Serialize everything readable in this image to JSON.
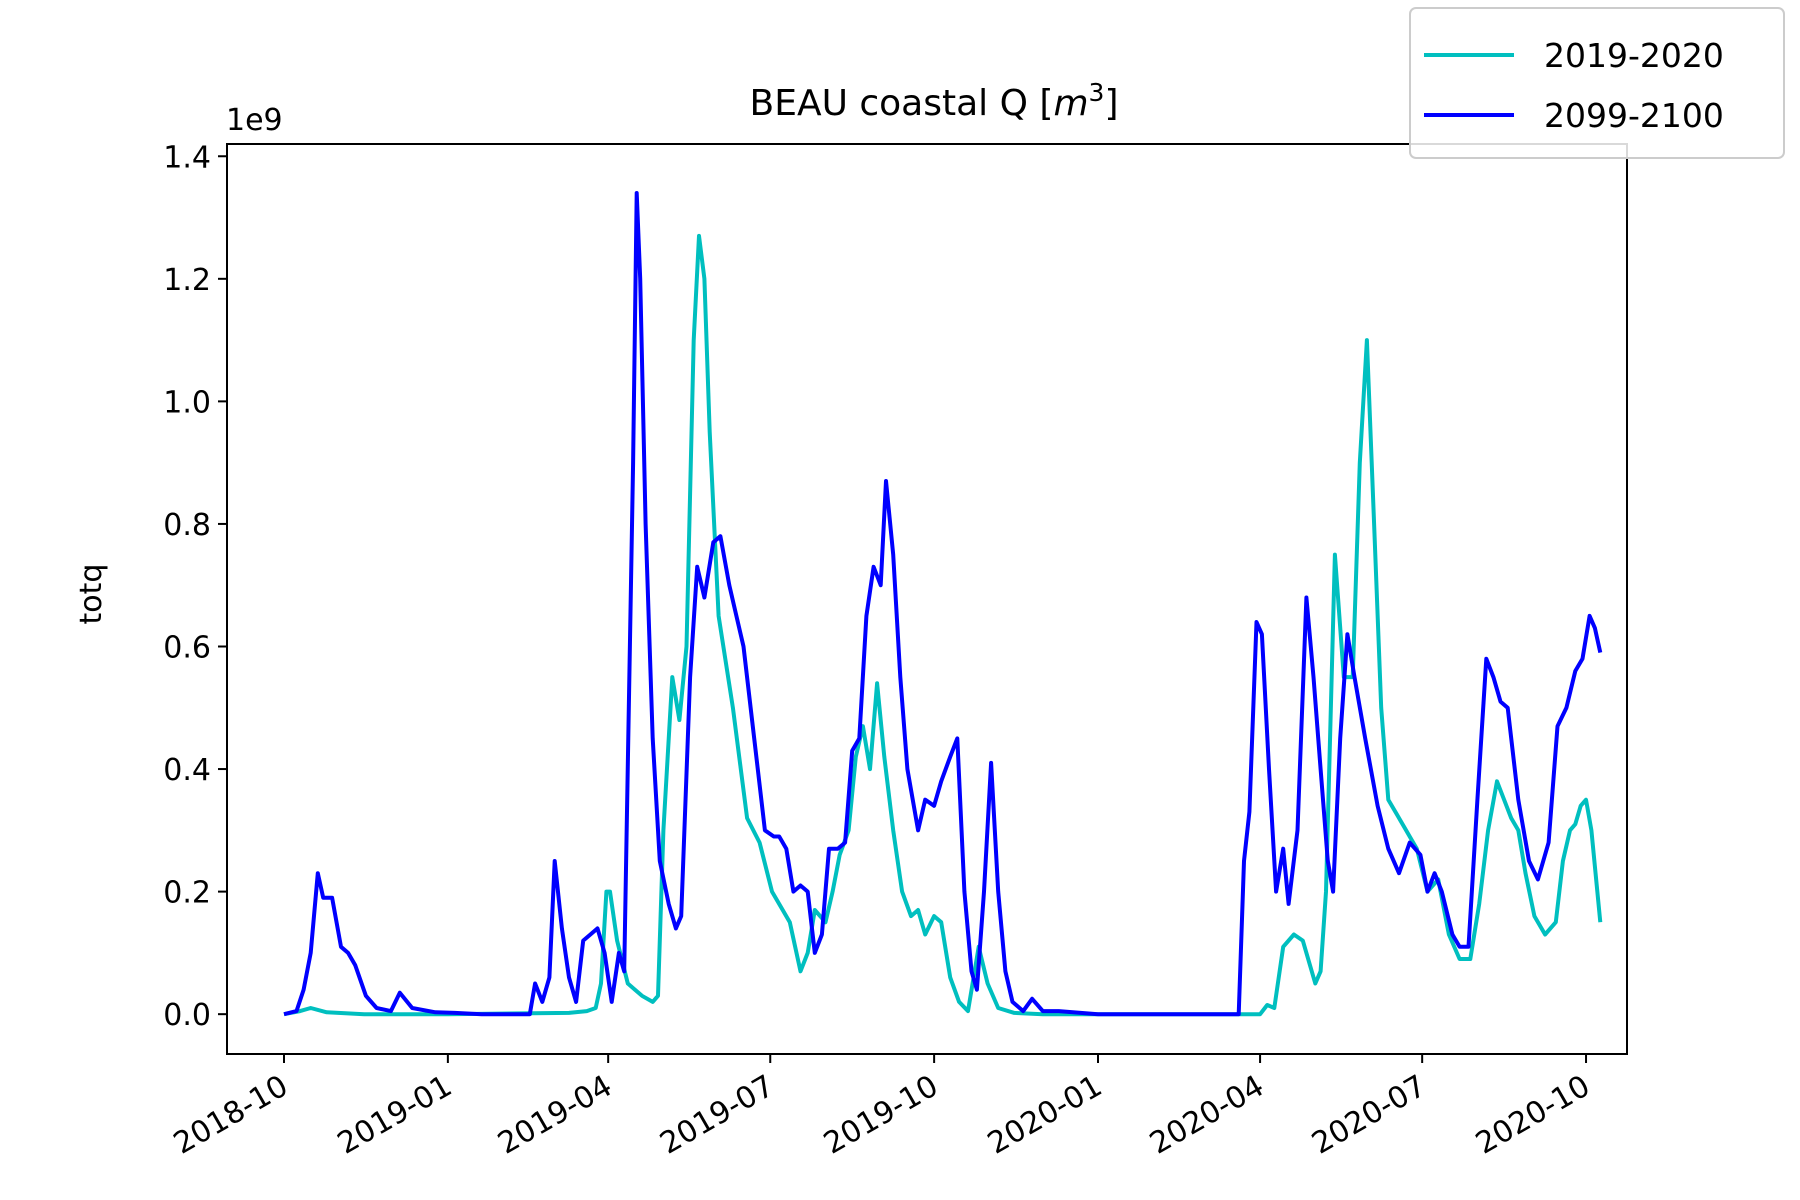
{
  "chart_data": {
    "type": "line",
    "title_main": "BEAU coastal Q [",
    "title_math": "m",
    "title_sup": "3",
    "title_end": "]",
    "ylabel": "totq",
    "y_offset_label": "1e9",
    "y_multiplier": 1000000000,
    "ylim": [
      -0.065,
      1.42
    ],
    "y_ticks": [
      0.0,
      0.2,
      0.4,
      0.6,
      0.8,
      1.0,
      1.2,
      1.4
    ],
    "y_tick_labels": [
      "0.0",
      "0.2",
      "0.4",
      "0.6",
      "0.8",
      "1.0",
      "1.2",
      "1.4"
    ],
    "xlim": [
      "2018-08-30",
      "2020-10-24"
    ],
    "x_ticks": [
      "2018-10-01",
      "2019-01-01",
      "2019-04-01",
      "2019-07-01",
      "2019-10-01",
      "2020-01-01",
      "2020-04-01",
      "2020-07-01",
      "2020-10-01"
    ],
    "x_tick_labels": [
      "2018-10",
      "2019-01",
      "2019-04",
      "2019-07",
      "2019-10",
      "2020-01",
      "2020-04",
      "2020-07",
      "2020-10"
    ],
    "grid": false,
    "legend_position": "top-right",
    "series": [
      {
        "name": "2019-2020",
        "color": "#00bfbf",
        "points": [
          [
            "2018-10-01",
            0.0
          ],
          [
            "2018-10-10",
            0.005
          ],
          [
            "2018-10-16",
            0.01
          ],
          [
            "2018-10-25",
            0.003
          ],
          [
            "2018-11-15",
            0.0
          ],
          [
            "2019-01-01",
            0.0
          ],
          [
            "2019-03-10",
            0.002
          ],
          [
            "2019-03-20",
            0.005
          ],
          [
            "2019-03-25",
            0.01
          ],
          [
            "2019-03-28",
            0.05
          ],
          [
            "2019-03-31",
            0.2
          ],
          [
            "2019-04-02",
            0.2
          ],
          [
            "2019-04-06",
            0.12
          ],
          [
            "2019-04-12",
            0.05
          ],
          [
            "2019-04-20",
            0.03
          ],
          [
            "2019-04-26",
            0.02
          ],
          [
            "2019-04-29",
            0.03
          ],
          [
            "2019-05-02",
            0.3
          ],
          [
            "2019-05-07",
            0.55
          ],
          [
            "2019-05-11",
            0.48
          ],
          [
            "2019-05-15",
            0.6
          ],
          [
            "2019-05-19",
            1.1
          ],
          [
            "2019-05-22",
            1.27
          ],
          [
            "2019-05-25",
            1.2
          ],
          [
            "2019-05-28",
            0.95
          ],
          [
            "2019-06-02",
            0.65
          ],
          [
            "2019-06-10",
            0.5
          ],
          [
            "2019-06-18",
            0.32
          ],
          [
            "2019-06-25",
            0.28
          ],
          [
            "2019-07-02",
            0.2
          ],
          [
            "2019-07-08",
            0.17
          ],
          [
            "2019-07-12",
            0.15
          ],
          [
            "2019-07-18",
            0.07
          ],
          [
            "2019-07-22",
            0.1
          ],
          [
            "2019-07-26",
            0.17
          ],
          [
            "2019-08-01",
            0.15
          ],
          [
            "2019-08-05",
            0.2
          ],
          [
            "2019-08-09",
            0.26
          ],
          [
            "2019-08-14",
            0.3
          ],
          [
            "2019-08-18",
            0.42
          ],
          [
            "2019-08-22",
            0.47
          ],
          [
            "2019-08-26",
            0.4
          ],
          [
            "2019-08-30",
            0.54
          ],
          [
            "2019-09-03",
            0.42
          ],
          [
            "2019-09-08",
            0.3
          ],
          [
            "2019-09-13",
            0.2
          ],
          [
            "2019-09-18",
            0.16
          ],
          [
            "2019-09-22",
            0.17
          ],
          [
            "2019-09-26",
            0.13
          ],
          [
            "2019-10-01",
            0.16
          ],
          [
            "2019-10-05",
            0.15
          ],
          [
            "2019-10-10",
            0.06
          ],
          [
            "2019-10-15",
            0.02
          ],
          [
            "2019-10-20",
            0.005
          ],
          [
            "2019-10-26",
            0.11
          ],
          [
            "2019-10-31",
            0.05
          ],
          [
            "2019-11-06",
            0.01
          ],
          [
            "2019-11-15",
            0.002
          ],
          [
            "2019-12-01",
            0.0
          ],
          [
            "2020-04-01",
            0.0
          ],
          [
            "2020-04-05",
            0.015
          ],
          [
            "2020-04-09",
            0.01
          ],
          [
            "2020-04-14",
            0.11
          ],
          [
            "2020-04-20",
            0.13
          ],
          [
            "2020-04-25",
            0.12
          ],
          [
            "2020-05-02",
            0.05
          ],
          [
            "2020-05-05",
            0.07
          ],
          [
            "2020-05-08",
            0.2
          ],
          [
            "2020-05-13",
            0.75
          ],
          [
            "2020-05-18",
            0.55
          ],
          [
            "2020-05-23",
            0.55
          ],
          [
            "2020-05-27",
            0.9
          ],
          [
            "2020-05-31",
            1.1
          ],
          [
            "2020-06-04",
            0.8
          ],
          [
            "2020-06-08",
            0.5
          ],
          [
            "2020-06-12",
            0.35
          ],
          [
            "2020-06-20",
            0.31
          ],
          [
            "2020-06-28",
            0.27
          ],
          [
            "2020-07-04",
            0.2
          ],
          [
            "2020-07-10",
            0.22
          ],
          [
            "2020-07-16",
            0.13
          ],
          [
            "2020-07-22",
            0.09
          ],
          [
            "2020-07-28",
            0.09
          ],
          [
            "2020-08-02",
            0.18
          ],
          [
            "2020-08-07",
            0.3
          ],
          [
            "2020-08-12",
            0.38
          ],
          [
            "2020-08-16",
            0.35
          ],
          [
            "2020-08-20",
            0.32
          ],
          [
            "2020-08-24",
            0.3
          ],
          [
            "2020-08-28",
            0.23
          ],
          [
            "2020-09-02",
            0.16
          ],
          [
            "2020-09-08",
            0.13
          ],
          [
            "2020-09-14",
            0.15
          ],
          [
            "2020-09-18",
            0.25
          ],
          [
            "2020-09-22",
            0.3
          ],
          [
            "2020-09-25",
            0.31
          ],
          [
            "2020-09-28",
            0.34
          ],
          [
            "2020-10-01",
            0.35
          ],
          [
            "2020-10-04",
            0.3
          ],
          [
            "2020-10-09",
            0.15
          ]
        ]
      },
      {
        "name": "2099-2100",
        "color": "#0000ff",
        "points": [
          [
            "2018-10-01",
            0.0
          ],
          [
            "2018-10-08",
            0.005
          ],
          [
            "2018-10-12",
            0.04
          ],
          [
            "2018-10-16",
            0.1
          ],
          [
            "2018-10-20",
            0.23
          ],
          [
            "2018-10-23",
            0.19
          ],
          [
            "2018-10-28",
            0.19
          ],
          [
            "2018-11-02",
            0.11
          ],
          [
            "2018-11-06",
            0.1
          ],
          [
            "2018-11-10",
            0.08
          ],
          [
            "2018-11-16",
            0.03
          ],
          [
            "2018-11-22",
            0.01
          ],
          [
            "2018-11-30",
            0.005
          ],
          [
            "2018-12-05",
            0.035
          ],
          [
            "2018-12-12",
            0.01
          ],
          [
            "2018-12-25",
            0.003
          ],
          [
            "2019-01-05",
            0.002
          ],
          [
            "2019-01-20",
            0.0
          ],
          [
            "2019-02-16",
            0.0
          ],
          [
            "2019-02-19",
            0.05
          ],
          [
            "2019-02-23",
            0.02
          ],
          [
            "2019-02-27",
            0.06
          ],
          [
            "2019-03-02",
            0.25
          ],
          [
            "2019-03-06",
            0.14
          ],
          [
            "2019-03-10",
            0.06
          ],
          [
            "2019-03-14",
            0.02
          ],
          [
            "2019-03-18",
            0.12
          ],
          [
            "2019-03-22",
            0.13
          ],
          [
            "2019-03-26",
            0.14
          ],
          [
            "2019-03-30",
            0.1
          ],
          [
            "2019-04-03",
            0.02
          ],
          [
            "2019-04-07",
            0.1
          ],
          [
            "2019-04-10",
            0.07
          ],
          [
            "2019-04-15",
            0.9
          ],
          [
            "2019-04-17",
            1.34
          ],
          [
            "2019-04-19",
            1.2
          ],
          [
            "2019-04-22",
            0.8
          ],
          [
            "2019-04-26",
            0.45
          ],
          [
            "2019-04-30",
            0.25
          ],
          [
            "2019-05-05",
            0.18
          ],
          [
            "2019-05-09",
            0.14
          ],
          [
            "2019-05-12",
            0.16
          ],
          [
            "2019-05-17",
            0.55
          ],
          [
            "2019-05-21",
            0.73
          ],
          [
            "2019-05-25",
            0.68
          ],
          [
            "2019-05-30",
            0.77
          ],
          [
            "2019-06-03",
            0.78
          ],
          [
            "2019-06-08",
            0.7
          ],
          [
            "2019-06-12",
            0.65
          ],
          [
            "2019-06-16",
            0.6
          ],
          [
            "2019-06-22",
            0.45
          ],
          [
            "2019-06-28",
            0.3
          ],
          [
            "2019-07-03",
            0.29
          ],
          [
            "2019-07-06",
            0.29
          ],
          [
            "2019-07-10",
            0.27
          ],
          [
            "2019-07-14",
            0.2
          ],
          [
            "2019-07-18",
            0.21
          ],
          [
            "2019-07-22",
            0.2
          ],
          [
            "2019-07-26",
            0.1
          ],
          [
            "2019-07-30",
            0.13
          ],
          [
            "2019-08-03",
            0.27
          ],
          [
            "2019-08-08",
            0.27
          ],
          [
            "2019-08-12",
            0.28
          ],
          [
            "2019-08-16",
            0.43
          ],
          [
            "2019-08-20",
            0.45
          ],
          [
            "2019-08-24",
            0.65
          ],
          [
            "2019-08-28",
            0.73
          ],
          [
            "2019-09-01",
            0.7
          ],
          [
            "2019-09-04",
            0.87
          ],
          [
            "2019-09-08",
            0.75
          ],
          [
            "2019-09-12",
            0.55
          ],
          [
            "2019-09-16",
            0.4
          ],
          [
            "2019-09-22",
            0.3
          ],
          [
            "2019-09-26",
            0.35
          ],
          [
            "2019-10-01",
            0.34
          ],
          [
            "2019-10-05",
            0.38
          ],
          [
            "2019-10-10",
            0.42
          ],
          [
            "2019-10-14",
            0.45
          ],
          [
            "2019-10-18",
            0.2
          ],
          [
            "2019-10-22",
            0.07
          ],
          [
            "2019-10-25",
            0.04
          ],
          [
            "2019-10-29",
            0.2
          ],
          [
            "2019-11-02",
            0.41
          ],
          [
            "2019-11-06",
            0.2
          ],
          [
            "2019-11-10",
            0.07
          ],
          [
            "2019-11-14",
            0.02
          ],
          [
            "2019-11-20",
            0.005
          ],
          [
            "2019-11-25",
            0.025
          ],
          [
            "2019-12-01",
            0.005
          ],
          [
            "2019-12-10",
            0.005
          ],
          [
            "2020-01-01",
            0.0
          ],
          [
            "2020-03-20",
            0.0
          ],
          [
            "2020-03-23",
            0.25
          ],
          [
            "2020-03-26",
            0.33
          ],
          [
            "2020-03-30",
            0.64
          ],
          [
            "2020-04-02",
            0.62
          ],
          [
            "2020-04-06",
            0.4
          ],
          [
            "2020-04-10",
            0.2
          ],
          [
            "2020-04-14",
            0.27
          ],
          [
            "2020-04-17",
            0.18
          ],
          [
            "2020-04-22",
            0.3
          ],
          [
            "2020-04-27",
            0.68
          ],
          [
            "2020-05-01",
            0.55
          ],
          [
            "2020-05-05",
            0.4
          ],
          [
            "2020-05-09",
            0.25
          ],
          [
            "2020-05-12",
            0.2
          ],
          [
            "2020-05-16",
            0.45
          ],
          [
            "2020-05-20",
            0.62
          ],
          [
            "2020-05-24",
            0.55
          ],
          [
            "2020-05-30",
            0.45
          ],
          [
            "2020-06-06",
            0.34
          ],
          [
            "2020-06-12",
            0.27
          ],
          [
            "2020-06-18",
            0.23
          ],
          [
            "2020-06-24",
            0.28
          ],
          [
            "2020-06-30",
            0.26
          ],
          [
            "2020-07-04",
            0.2
          ],
          [
            "2020-07-08",
            0.23
          ],
          [
            "2020-07-12",
            0.2
          ],
          [
            "2020-07-18",
            0.13
          ],
          [
            "2020-07-22",
            0.11
          ],
          [
            "2020-07-27",
            0.11
          ],
          [
            "2020-08-01",
            0.35
          ],
          [
            "2020-08-06",
            0.58
          ],
          [
            "2020-08-10",
            0.55
          ],
          [
            "2020-08-14",
            0.51
          ],
          [
            "2020-08-18",
            0.5
          ],
          [
            "2020-08-24",
            0.35
          ],
          [
            "2020-08-30",
            0.25
          ],
          [
            "2020-09-04",
            0.22
          ],
          [
            "2020-09-10",
            0.28
          ],
          [
            "2020-09-15",
            0.47
          ],
          [
            "2020-09-20",
            0.5
          ],
          [
            "2020-09-25",
            0.56
          ],
          [
            "2020-09-29",
            0.58
          ],
          [
            "2020-10-03",
            0.65
          ],
          [
            "2020-10-06",
            0.63
          ],
          [
            "2020-10-09",
            0.59
          ]
        ]
      }
    ]
  }
}
